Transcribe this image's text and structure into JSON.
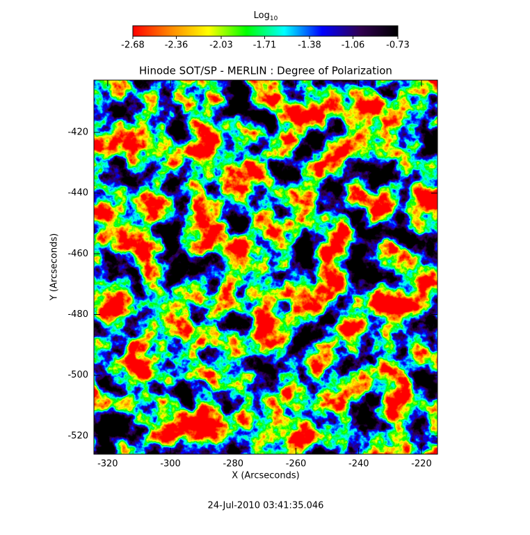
{
  "chart_data": {
    "type": "heatmap",
    "title": "Hinode SOT/SP - MERLIN : Degree of Polarization",
    "colorbar_label": "Log",
    "colorbar_label_sub": "10",
    "clim": [
      -2.68,
      -0.73
    ],
    "cticks": [
      -2.68,
      -2.36,
      -2.03,
      -1.71,
      -1.38,
      -1.06,
      -0.73
    ],
    "colormap": [
      "#ff0000",
      "#ff8800",
      "#ffff00",
      "#00ff00",
      "#00ffff",
      "#0000ff",
      "#300050",
      "#000000"
    ],
    "xlabel": "X (Arcseconds)",
    "ylabel": "Y (Arcseconds)",
    "xlim": [
      -324.4,
      -214.9
    ],
    "ylim": [
      -526.0,
      -402.8
    ],
    "xticks": [
      -320,
      -300,
      -280,
      -260,
      -240,
      -220
    ],
    "yticks": [
      -520,
      -500,
      -480,
      -460,
      -440,
      -420
    ],
    "timestamp": "24-Jul-2010 03:41:35.046"
  }
}
